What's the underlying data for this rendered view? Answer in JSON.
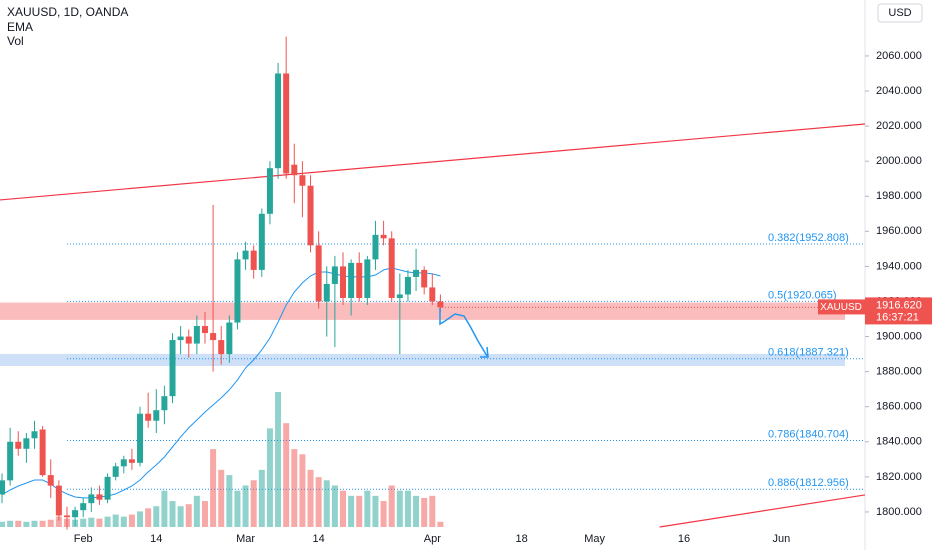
{
  "chart_data": {
    "type": "candlestick",
    "title": "XAUUSD, 1D, OANDA",
    "indicators": [
      "EMA",
      "Vol"
    ],
    "currency": "USD",
    "symbol_tag": "XAUUSD",
    "countdown": "16:37:21",
    "last_price": {
      "value": 1916.62,
      "label": "1916.620"
    },
    "up_color": "#26a69a",
    "down_color": "#ef5350",
    "ema_color": "#2196f3",
    "grid": false,
    "xlim": [
      -0.25,
      106.3
    ],
    "ylim": [
      1789.7,
      2091.9
    ],
    "xticks": [
      {
        "value": 10,
        "label": "Feb"
      },
      {
        "value": 19,
        "label": "14"
      },
      {
        "value": 30,
        "label": "Mar"
      },
      {
        "value": 39,
        "label": "14"
      },
      {
        "value": 53,
        "label": "Apr"
      },
      {
        "value": 64,
        "label": "18"
      },
      {
        "value": 73,
        "label": "May"
      },
      {
        "value": 84,
        "label": "16"
      },
      {
        "value": 96,
        "label": "Jun"
      }
    ],
    "yticks": [
      {
        "value": 1800,
        "label": "1800.000"
      },
      {
        "value": 1820,
        "label": "1820.000"
      },
      {
        "value": 1840,
        "label": "1840.000"
      },
      {
        "value": 1860,
        "label": "1860.000"
      },
      {
        "value": 1880,
        "label": "1880.000"
      },
      {
        "value": 1900,
        "label": "1900.000"
      },
      {
        "value": 1920,
        "label": "1920.000"
      },
      {
        "value": 1940,
        "label": "1940.000"
      },
      {
        "value": 1960,
        "label": "1960.000"
      },
      {
        "value": 1980,
        "label": "1980.000"
      },
      {
        "value": 2000,
        "label": "2000.000"
      },
      {
        "value": 2020,
        "label": "2020.000"
      },
      {
        "value": 2040,
        "label": "2040.000"
      },
      {
        "value": 2060,
        "label": "2060.000"
      }
    ],
    "open": [
      1810,
      1818,
      1840,
      1836,
      1842,
      1847,
      1821,
      1815,
      1798,
      1797,
      1801,
      1805,
      1810,
      1807,
      1820,
      1826,
      1830,
      1828,
      1856,
      1852,
      1858,
      1866,
      1898,
      1900,
      1896,
      1906,
      1902,
      1898,
      1890,
      1908,
      1944,
      1949,
      1938,
      1970,
      1996,
      2050,
      1998,
      1992,
      1986,
      1952,
      1920,
      1930,
      1940,
      1922,
      1942,
      1922,
      1944,
      1958,
      1956,
      1922,
      1924,
      1934,
      1938,
      1928,
      1920
    ],
    "high": [
      1822,
      1848,
      1846,
      1845,
      1852,
      1849,
      1830,
      1818,
      1803,
      1803,
      1808,
      1814,
      1815,
      1822,
      1828,
      1832,
      1836,
      1860,
      1868,
      1870,
      1872,
      1902,
      1906,
      1904,
      1912,
      1914,
      1975,
      1906,
      1912,
      1948,
      1954,
      1952,
      1973,
      2000,
      2056,
      2071,
      2010,
      2000,
      1992,
      1960,
      1940,
      1946,
      1948,
      1944,
      1948,
      1946,
      1966,
      1966,
      1960,
      1936,
      1938,
      1950,
      1940,
      1936,
      1924
    ],
    "low": [
      1805,
      1815,
      1832,
      1828,
      1836,
      1820,
      1808,
      1795,
      1790,
      1792,
      1797,
      1800,
      1804,
      1805,
      1818,
      1822,
      1824,
      1826,
      1848,
      1845,
      1850,
      1862,
      1890,
      1888,
      1890,
      1896,
      1880,
      1884,
      1885,
      1904,
      1938,
      1933,
      1934,
      1964,
      1990,
      1990,
      1976,
      1968,
      1948,
      1916,
      1900,
      1894,
      1918,
      1912,
      1920,
      1918,
      1938,
      1952,
      1920,
      1890,
      1920,
      1926,
      1924,
      1918,
      1914
    ],
    "close": [
      1818,
      1840,
      1836,
      1842,
      1846,
      1821,
      1815,
      1798,
      1797,
      1801,
      1805,
      1810,
      1807,
      1820,
      1826,
      1830,
      1828,
      1856,
      1852,
      1858,
      1866,
      1898,
      1900,
      1896,
      1906,
      1902,
      1898,
      1890,
      1908,
      1944,
      1949,
      1938,
      1970,
      1996,
      2050,
      1993,
      1992,
      1986,
      1952,
      1920,
      1930,
      1940,
      1922,
      1942,
      1922,
      1944,
      1958,
      1956,
      1922,
      1924,
      1934,
      1938,
      1928,
      1920,
      1916.62
    ],
    "volume": [
      5,
      6,
      6,
      5,
      6,
      6,
      7,
      10,
      8,
      7,
      8,
      9,
      8,
      10,
      12,
      10,
      12,
      15,
      18,
      20,
      35,
      25,
      20,
      22,
      30,
      25,
      75,
      55,
      50,
      35,
      40,
      45,
      55,
      95,
      130,
      100,
      75,
      70,
      55,
      48,
      45,
      40,
      35,
      30,
      30,
      35,
      30,
      25,
      40,
      35,
      35,
      30,
      28,
      30,
      5
    ],
    "ema": [
      1809.7,
      1812.5,
      1814.8,
      1816.5,
      1818.2,
      1818.2,
      1816,
      1812.5,
      1810.3,
      1808.5,
      1808,
      1808,
      1808.5,
      1809.1,
      1810.3,
      1812.5,
      1814.8,
      1818.2,
      1822.8,
      1826.8,
      1831.3,
      1837,
      1842.8,
      1847.9,
      1852.4,
      1857,
      1861,
      1865,
      1869.6,
      1875.3,
      1882.1,
      1886.7,
      1892.4,
      1899.2,
      1908.3,
      1918,
      1925.4,
      1930.6,
      1934.6,
      1936.8,
      1936.8,
      1935.7,
      1934.6,
      1934,
      1934,
      1934,
      1935.1,
      1938,
      1939.1,
      1938,
      1936.8,
      1936.3,
      1936.3,
      1935.7,
      1934.6
    ],
    "fib_levels": [
      {
        "value": 1952.808,
        "label": "0.382(1952.808)"
      },
      {
        "value": 1920.065,
        "label": "0.5(1920.065)"
      },
      {
        "value": 1887.321,
        "label": "0.618(1887.321)"
      },
      {
        "value": 1840.704,
        "label": "0.786(1840.704)"
      },
      {
        "value": 1812.956,
        "label": "0.886(1812.956)"
      }
    ],
    "zones": [
      {
        "color": "#f8a5a5",
        "range": [
          1909.5,
          1919.4
        ]
      },
      {
        "color": "#bcd6f5",
        "range": [
          1883.2,
          1890.1
        ]
      }
    ],
    "trendlines": [
      {
        "color": "#f23645",
        "points": [
          [
            -0.25,
            1977.9
          ],
          [
            106.3,
            2021.2
          ]
        ]
      },
      {
        "color": "#f23645",
        "points": [
          [
            81,
            1791.4
          ],
          [
            106.3,
            1809.7
          ]
        ]
      }
    ]
  }
}
